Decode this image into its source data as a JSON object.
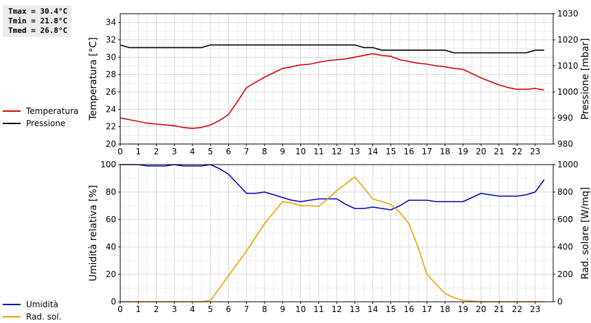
{
  "stats": {
    "tmax": "Tmax = 30.4°C",
    "tmin": "Tmin = 21.8°C",
    "tmed": "Tmed = 26.8°C"
  },
  "chart_data": [
    {
      "type": "line",
      "x": [
        0,
        0.5,
        1,
        1.5,
        2,
        2.5,
        3,
        3.5,
        4,
        4.5,
        5,
        5.5,
        6,
        6.5,
        7,
        7.5,
        8,
        8.5,
        9,
        9.5,
        10,
        10.5,
        11,
        11.5,
        12,
        12.5,
        13,
        13.5,
        14,
        14.5,
        15,
        15.5,
        16,
        16.5,
        17,
        17.5,
        18,
        18.5,
        19,
        19.5,
        20,
        20.5,
        21,
        21.5,
        22,
        22.5,
        23,
        23.5
      ],
      "xlim": [
        0,
        24
      ],
      "xticks": [
        "0",
        "1",
        "2",
        "3",
        "4",
        "5",
        "6",
        "7",
        "8",
        "9",
        "10",
        "11",
        "12",
        "13",
        "14",
        "15",
        "16",
        "17",
        "18",
        "19",
        "20",
        "21",
        "22",
        "23"
      ],
      "grid": true,
      "ylabel": "Temperatura [°C]",
      "ylim": [
        20,
        35
      ],
      "yticks": [
        "20",
        "22",
        "24",
        "26",
        "28",
        "30",
        "32",
        "34"
      ],
      "y2label": "Pressione [mbar]",
      "y2lim": [
        980,
        1030
      ],
      "y2ticks": [
        "980",
        "990",
        "1000",
        "1010",
        "1020",
        "1030"
      ],
      "series": [
        {
          "name": "Temperatura",
          "axis": "left",
          "color": "#dd0000",
          "values": [
            23.0,
            22.8,
            22.6,
            22.4,
            22.3,
            22.2,
            22.1,
            21.9,
            21.8,
            21.9,
            22.2,
            22.7,
            23.4,
            24.9,
            26.5,
            27.1,
            27.7,
            28.2,
            28.7,
            28.9,
            29.1,
            29.2,
            29.4,
            29.6,
            29.7,
            29.8,
            30.0,
            30.2,
            30.4,
            30.2,
            30.1,
            29.7,
            29.5,
            29.3,
            29.2,
            29.0,
            28.9,
            28.7,
            28.6,
            28.1,
            27.6,
            27.2,
            26.8,
            26.5,
            26.3,
            26.3,
            26.4,
            26.2
          ]
        },
        {
          "name": "Pressione",
          "axis": "right",
          "color": "#000000",
          "values": [
            1018,
            1017,
            1017,
            1017,
            1017,
            1017,
            1017,
            1017,
            1017,
            1017,
            1018,
            1018,
            1018,
            1018,
            1018,
            1018,
            1018,
            1018,
            1018,
            1018,
            1018,
            1018,
            1018,
            1018,
            1018,
            1018,
            1018,
            1017,
            1017,
            1016,
            1016,
            1016,
            1016,
            1016,
            1016,
            1016,
            1016,
            1015,
            1015,
            1015,
            1015,
            1015,
            1015,
            1015,
            1015,
            1015,
            1016,
            1016
          ]
        }
      ]
    },
    {
      "type": "line",
      "x": [
        0,
        0.5,
        1,
        1.5,
        2,
        2.5,
        3,
        3.5,
        4,
        4.5,
        5,
        5.5,
        6,
        6.5,
        7,
        7.5,
        8,
        8.5,
        9,
        9.5,
        10,
        10.5,
        11,
        11.5,
        12,
        12.5,
        13,
        13.5,
        14,
        14.5,
        15,
        15.5,
        16,
        16.5,
        17,
        17.5,
        18,
        18.5,
        19,
        19.5,
        20,
        20.5,
        21,
        21.5,
        22,
        22.5,
        23,
        23.5
      ],
      "xlim": [
        0,
        24
      ],
      "xticks": [
        "0",
        "1",
        "2",
        "3",
        "4",
        "5",
        "6",
        "7",
        "8",
        "9",
        "10",
        "11",
        "12",
        "13",
        "14",
        "15",
        "16",
        "17",
        "18",
        "19",
        "20",
        "21",
        "22",
        "23"
      ],
      "grid": true,
      "ylabel": "Umidità relativa [%]",
      "ylim": [
        0,
        100
      ],
      "yticks": [
        "0",
        "20",
        "40",
        "60",
        "80",
        "100"
      ],
      "y2label": "Rad. solare [W/mq]",
      "y2lim": [
        0,
        1000
      ],
      "y2ticks": [
        "0",
        "200",
        "400",
        "600",
        "800",
        "1000"
      ],
      "series": [
        {
          "name": "Umidità",
          "axis": "left",
          "color": "#0000bb",
          "values": [
            100,
            100,
            100,
            99,
            99,
            99,
            100,
            99,
            99,
            99,
            100,
            97,
            93,
            86,
            79,
            79,
            80,
            78,
            76,
            74,
            73,
            74,
            75,
            75,
            75,
            71,
            68,
            68,
            69,
            68,
            67,
            70,
            74,
            74,
            74,
            73,
            73,
            73,
            73,
            76,
            79,
            78,
            77,
            77,
            77,
            78,
            80,
            89
          ]
        },
        {
          "name": "Rad. sol.",
          "axis": "right",
          "color": "#f0a000",
          "values": [
            0,
            0,
            0,
            0,
            0,
            0,
            0,
            0,
            0,
            0,
            10,
            100,
            190,
            280,
            370,
            470,
            570,
            650,
            730,
            720,
            700,
            700,
            695,
            750,
            810,
            860,
            910,
            830,
            750,
            730,
            710,
            650,
            570,
            400,
            200,
            130,
            60,
            30,
            10,
            5,
            0,
            0,
            0,
            0,
            0,
            0,
            0,
            0
          ]
        }
      ]
    }
  ]
}
